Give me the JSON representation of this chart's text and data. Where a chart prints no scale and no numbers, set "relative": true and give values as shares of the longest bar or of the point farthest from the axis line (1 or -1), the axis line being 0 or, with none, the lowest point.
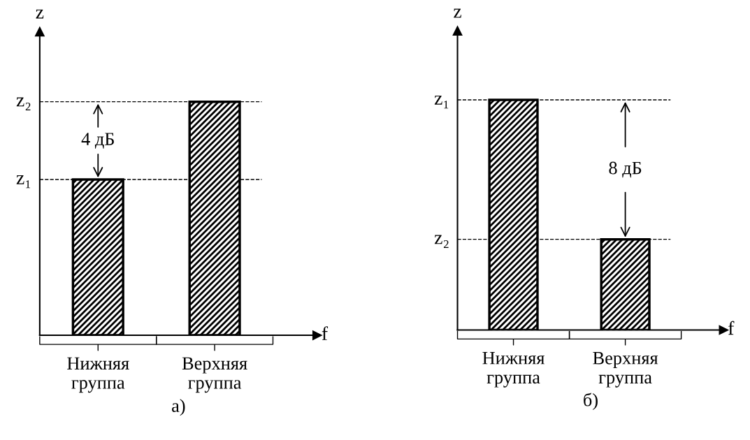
{
  "chart_data": [
    {
      "type": "bar",
      "relative": true,
      "xlabel": "f",
      "ylabel": "z",
      "categories": [
        "Нижняя\nгруппа",
        "Верхняя\nгруппа"
      ],
      "series": [
        {
          "color": "#000000",
          "values": [
            0.667,
            1
          ]
        }
      ],
      "ref_lines": [
        {
          "axis": "y",
          "value": 1,
          "label": "z₂",
          "line_style": "dashed"
        },
        {
          "axis": "y",
          "value": 0.667,
          "label": "z₁",
          "line_style": "dashed"
        }
      ],
      "annotations": [
        "4 дБ",
        "а)"
      ]
    },
    {
      "type": "bar",
      "relative": true,
      "xlabel": "f",
      "ylabel": "z",
      "categories": [
        "Нижняя\nгруппа",
        "Верхняя\nгруппа"
      ],
      "series": [
        {
          "color": "#000000",
          "values": [
            1,
            0.394
          ]
        }
      ],
      "ref_lines": [
        {
          "axis": "y",
          "value": 1,
          "label": "z₁",
          "line_style": "dashed"
        },
        {
          "axis": "y",
          "value": 0.394,
          "label": "z₂",
          "line_style": "dashed"
        }
      ],
      "annotations": [
        "8 дБ",
        "б)"
      ]
    }
  ]
}
